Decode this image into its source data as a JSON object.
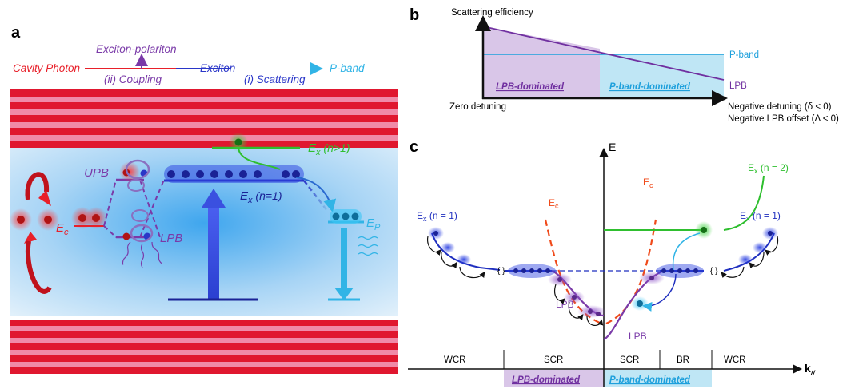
{
  "panel_a": {
    "label": "a",
    "top_labels": {
      "cavity_photon": "Cavity Photon",
      "exciton_polariton": "Exciton-polariton",
      "coupling": "(ii) Coupling",
      "exciton": "Exciton",
      "scattering": "(i) Scattering",
      "p_band": "P-band"
    },
    "level_labels": {
      "upb": "UPB",
      "lpb": "LPB",
      "ec": "E",
      "ec_sub": "c",
      "ex_n1": "E",
      "ex_n1_sub": "x",
      "ex_n1_tail": " (n=1)",
      "ex_ngt1": "E",
      "ex_ngt1_sub": "x",
      "ex_ngt1_tail": " (n>1)",
      "ep": "E",
      "ep_sub": "P"
    },
    "colors": {
      "cavity_photon": "#e8202a",
      "polariton": "#7a3aa8",
      "exciton": "#2a36c8",
      "p_band": "#31b4e6",
      "higher_exciton": "#2fbf2f",
      "mirror_red": "#e0172f",
      "mirror_pink": "#f08aa8"
    }
  },
  "panel_b": {
    "label": "b",
    "ylabel": "Scattering efficiency",
    "xlabel_start": "Zero detuning",
    "xlabel_end_1": "Negative detuning (δ < 0)",
    "xlabel_end_2": "Negative LPB offset (Δ < 0)",
    "region_lpb": "LPB-dominated",
    "region_pband": "P-band-dominated",
    "line_pband": "P-band",
    "line_lpb": "LPB",
    "colors": {
      "lpb": "#7030a0",
      "pband": "#1ea0dc",
      "lpb_fill": "#d9c6e8",
      "pband_fill": "#bfe6f5"
    }
  },
  "panel_c": {
    "label": "c",
    "yaxis": "E",
    "xaxis": "k",
    "xaxis_sub": "//",
    "regions": [
      "WCR",
      "SCR",
      "SCR",
      "BR",
      "WCR"
    ],
    "region_lpb": "LPB-dominated",
    "region_pband": "P-band-dominated",
    "curve_labels": {
      "ex_left": "E",
      "ex_left_sub": "x",
      "ex_left_tail": " (n = 1)",
      "ex_right": "E",
      "ex_right_sub": "x",
      "ex_right_tail": " (n = 1)",
      "ex_n2": "E",
      "ex_n2_sub": "x",
      "ex_n2_tail": " (n = 2)",
      "ec_left": "E",
      "ec_left_sub": "c",
      "ec_right": "E",
      "ec_right_sub": "c",
      "lpb_left": "LPB",
      "lpb_right": "LPB"
    },
    "colors": {
      "exciton": "#1f2fbf",
      "lpb": "#7a3aa8",
      "ec": "#f04a1a",
      "n2": "#2fbf2f",
      "pband": "#31b4e6"
    }
  }
}
